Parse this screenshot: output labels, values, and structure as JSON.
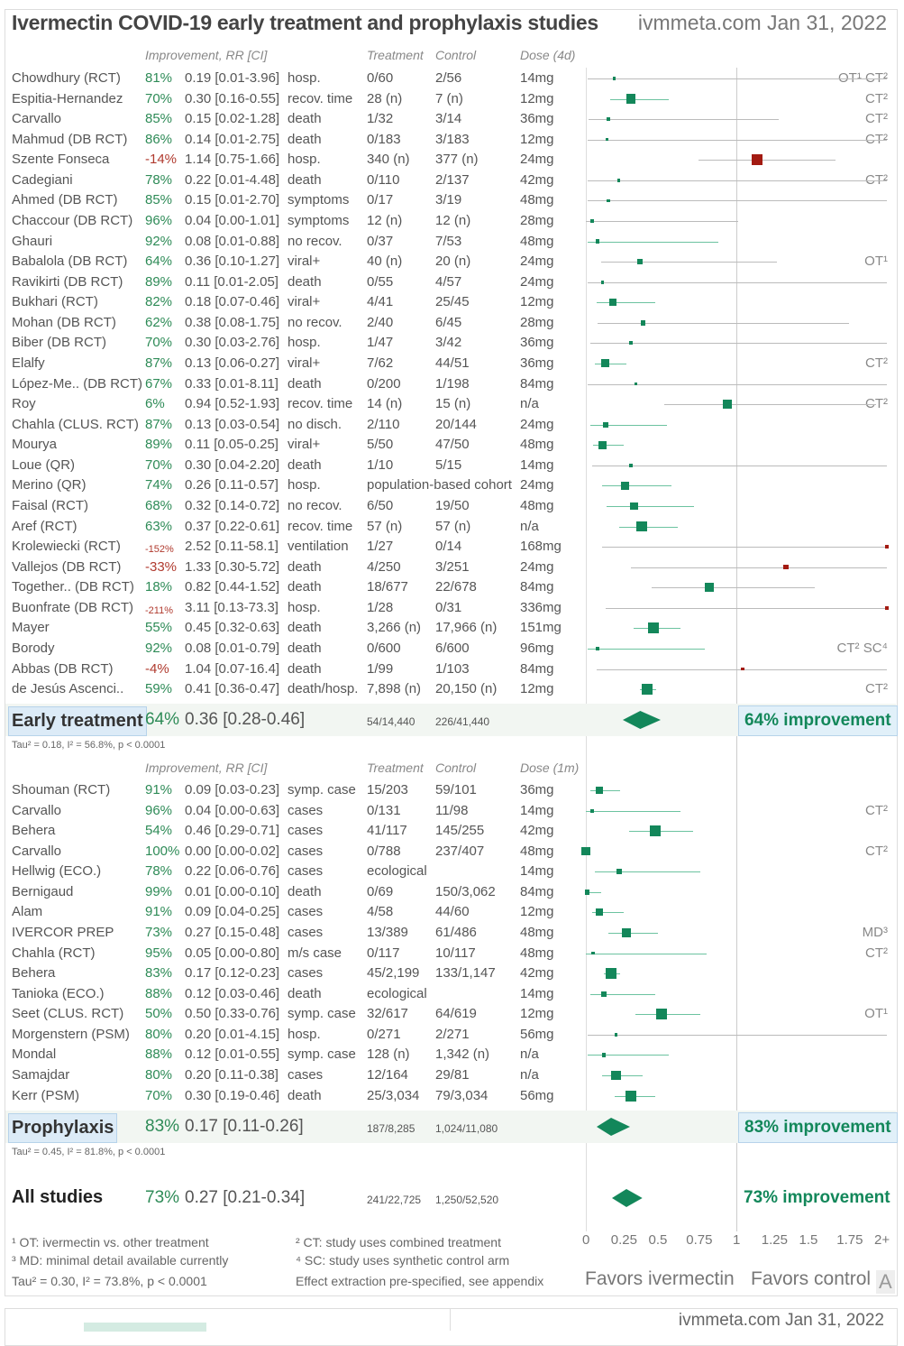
{
  "header": {
    "title": "Ivermectin COVID-19 early treatment and prophylaxis studies",
    "site": "ivmmeta.com Jan 31, 2022"
  },
  "colors": {
    "green": "#13875a",
    "red": "#a31b12",
    "gray_line": "#bbbbbb",
    "green_line": "#6cc3a0"
  },
  "column_headers": {
    "early": {
      "improvement": "Improvement, RR [CI]",
      "treatment": "Treatment",
      "control": "Control",
      "dose": "Dose (4d)"
    },
    "prophylaxis": {
      "improvement": "Improvement, RR [CI]",
      "treatment": "Treatment",
      "control": "Control",
      "dose": "Dose (1m)"
    }
  },
  "chart_data": {
    "type": "forest",
    "x_axis": {
      "ticks": [
        "0",
        "0.25",
        "0.5",
        "0.75",
        "1",
        "1.25",
        "1.5",
        "1.75",
        "2+"
      ],
      "range": [
        0,
        2
      ],
      "reference_line": 1,
      "left_label": "Favors ivermectin",
      "right_label": "Favors control"
    },
    "early": [
      {
        "name": "Chowdhury (RCT)",
        "imp": "81%",
        "rr": "0.19 [0.01-3.96]",
        "outcome": "hosp.",
        "t": "0/60",
        "c": "2/56",
        "dose": "14mg",
        "note": "OT¹ CT²"
      },
      {
        "name": "Espitia-Hernandez",
        "imp": "70%",
        "rr": "0.30 [0.16-0.55]",
        "outcome": "recov. time",
        "t": "28 (n)",
        "c": "7 (n)",
        "dose": "12mg",
        "note": "CT²"
      },
      {
        "name": "Carvallo",
        "imp": "85%",
        "rr": "0.15 [0.02-1.28]",
        "outcome": "death",
        "t": "1/32",
        "c": "3/14",
        "dose": "36mg",
        "note": "CT²"
      },
      {
        "name": "Mahmud (DB RCT)",
        "imp": "86%",
        "rr": "0.14 [0.01-2.75]",
        "outcome": "death",
        "t": "0/183",
        "c": "3/183",
        "dose": "12mg",
        "note": "CT²"
      },
      {
        "name": "Szente Fonseca",
        "imp": "-14%",
        "rr": "1.14 [0.75-1.66]",
        "outcome": "hosp.",
        "t": "340 (n)",
        "c": "377 (n)",
        "dose": "24mg",
        "note": ""
      },
      {
        "name": "Cadegiani",
        "imp": "78%",
        "rr": "0.22 [0.01-4.48]",
        "outcome": "death",
        "t": "0/110",
        "c": "2/137",
        "dose": "42mg",
        "note": "CT²"
      },
      {
        "name": "Ahmed (DB RCT)",
        "imp": "85%",
        "rr": "0.15 [0.01-2.70]",
        "outcome": "symptoms",
        "t": "0/17",
        "c": "3/19",
        "dose": "48mg",
        "note": ""
      },
      {
        "name": "Chaccour (DB RCT)",
        "imp": "96%",
        "rr": "0.04 [0.00-1.01]",
        "outcome": "symptoms",
        "t": "12 (n)",
        "c": "12 (n)",
        "dose": "28mg",
        "note": ""
      },
      {
        "name": "Ghauri",
        "imp": "92%",
        "rr": "0.08 [0.01-0.88]",
        "outcome": "no recov.",
        "t": "0/37",
        "c": "7/53",
        "dose": "48mg",
        "note": ""
      },
      {
        "name": "Babalola (DB RCT)",
        "imp": "64%",
        "rr": "0.36 [0.10-1.27]",
        "outcome": "viral+",
        "t": "40 (n)",
        "c": "20 (n)",
        "dose": "24mg",
        "note": "OT¹"
      },
      {
        "name": "Ravikirti (DB RCT)",
        "imp": "89%",
        "rr": "0.11 [0.01-2.05]",
        "outcome": "death",
        "t": "0/55",
        "c": "4/57",
        "dose": "24mg",
        "note": ""
      },
      {
        "name": "Bukhari (RCT)",
        "imp": "82%",
        "rr": "0.18 [0.07-0.46]",
        "outcome": "viral+",
        "t": "4/41",
        "c": "25/45",
        "dose": "12mg",
        "note": ""
      },
      {
        "name": "Mohan (DB RCT)",
        "imp": "62%",
        "rr": "0.38 [0.08-1.75]",
        "outcome": "no recov.",
        "t": "2/40",
        "c": "6/45",
        "dose": "28mg",
        "note": ""
      },
      {
        "name": "Biber (DB RCT)",
        "imp": "70%",
        "rr": "0.30 [0.03-2.76]",
        "outcome": "hosp.",
        "t": "1/47",
        "c": "3/42",
        "dose": "36mg",
        "note": ""
      },
      {
        "name": "Elalfy",
        "imp": "87%",
        "rr": "0.13 [0.06-0.27]",
        "outcome": "viral+",
        "t": "7/62",
        "c": "44/51",
        "dose": "36mg",
        "note": "CT²"
      },
      {
        "name": "López-Me.. (DB RCT)",
        "imp": "67%",
        "rr": "0.33 [0.01-8.11]",
        "outcome": "death",
        "t": "0/200",
        "c": "1/198",
        "dose": "84mg",
        "note": ""
      },
      {
        "name": "Roy",
        "imp": "6%",
        "rr": "0.94 [0.52-1.93]",
        "outcome": "recov. time",
        "t": "14 (n)",
        "c": "15 (n)",
        "dose": "n/a",
        "note": "CT²"
      },
      {
        "name": "Chahla (CLUS. RCT)",
        "imp": "87%",
        "rr": "0.13 [0.03-0.54]",
        "outcome": "no disch.",
        "t": "2/110",
        "c": "20/144",
        "dose": "24mg",
        "note": ""
      },
      {
        "name": "Mourya",
        "imp": "89%",
        "rr": "0.11 [0.05-0.25]",
        "outcome": "viral+",
        "t": "5/50",
        "c": "47/50",
        "dose": "48mg",
        "note": ""
      },
      {
        "name": "Loue (QR)",
        "imp": "70%",
        "rr": "0.30 [0.04-2.20]",
        "outcome": "death",
        "t": "1/10",
        "c": "5/15",
        "dose": "14mg",
        "note": ""
      },
      {
        "name": "Merino (QR)",
        "imp": "74%",
        "rr": "0.26 [0.11-0.57]",
        "outcome": "hosp.",
        "t": "population-based cohort",
        "c": "",
        "dose": "24mg",
        "note": ""
      },
      {
        "name": "Faisal (RCT)",
        "imp": "68%",
        "rr": "0.32 [0.14-0.72]",
        "outcome": "no recov.",
        "t": "6/50",
        "c": "19/50",
        "dose": "48mg",
        "note": ""
      },
      {
        "name": "Aref (RCT)",
        "imp": "63%",
        "rr": "0.37 [0.22-0.61]",
        "outcome": "recov. time",
        "t": "57 (n)",
        "c": "57 (n)",
        "dose": "n/a",
        "note": ""
      },
      {
        "name": "Krolewiecki (RCT)",
        "imp": "-152%",
        "rr": "2.52 [0.11-58.1]",
        "outcome": "ventilation",
        "t": "1/27",
        "c": "0/14",
        "dose": "168mg",
        "note": ""
      },
      {
        "name": "Vallejos (DB RCT)",
        "imp": "-33%",
        "rr": "1.33 [0.30-5.72]",
        "outcome": "death",
        "t": "4/250",
        "c": "3/251",
        "dose": "24mg",
        "note": ""
      },
      {
        "name": "Together.. (DB RCT)",
        "imp": "18%",
        "rr": "0.82 [0.44-1.52]",
        "outcome": "death",
        "t": "18/677",
        "c": "22/678",
        "dose": "84mg",
        "note": ""
      },
      {
        "name": "Buonfrate (DB RCT)",
        "imp": "-211%",
        "rr": "3.11 [0.13-73.3]",
        "outcome": "hosp.",
        "t": "1/28",
        "c": "0/31",
        "dose": "336mg",
        "note": ""
      },
      {
        "name": "Mayer",
        "imp": "55%",
        "rr": "0.45 [0.32-0.63]",
        "outcome": "death",
        "t": "3,266 (n)",
        "c": "17,966 (n)",
        "dose": "151mg",
        "note": ""
      },
      {
        "name": "Borody",
        "imp": "92%",
        "rr": "0.08 [0.01-0.79]",
        "outcome": "death",
        "t": "0/600",
        "c": "6/600",
        "dose": "96mg",
        "note": "CT² SC⁴"
      },
      {
        "name": "Abbas (DB RCT)",
        "imp": "-4%",
        "rr": "1.04 [0.07-16.4]",
        "outcome": "death",
        "t": "1/99",
        "c": "1/103",
        "dose": "84mg",
        "note": ""
      },
      {
        "name": "de Jesús Ascenci..",
        "imp": "59%",
        "rr": "0.41 [0.36-0.47]",
        "outcome": "death/hosp.",
        "t": "7,898 (n)",
        "c": "20,150 (n)",
        "dose": "12mg",
        "note": "CT²"
      }
    ],
    "early_summary": {
      "label": "Early treatment",
      "imp": "64%",
      "rr": "0.36 [0.28-0.46]",
      "t": "54/14,440",
      "c": "226/41,440",
      "improvement": "64% improvement",
      "stats": "Tau² = 0.18, I² = 56.8%, p < 0.0001"
    },
    "prophylaxis": [
      {
        "name": "Shouman (RCT)",
        "imp": "91%",
        "rr": "0.09 [0.03-0.23]",
        "outcome": "symp. case",
        "t": "15/203",
        "c": "59/101",
        "dose": "36mg",
        "note": ""
      },
      {
        "name": "Carvallo",
        "imp": "96%",
        "rr": "0.04 [0.00-0.63]",
        "outcome": "cases",
        "t": "0/131",
        "c": "11/98",
        "dose": "14mg",
        "note": "CT²"
      },
      {
        "name": "Behera",
        "imp": "54%",
        "rr": "0.46 [0.29-0.71]",
        "outcome": "cases",
        "t": "41/117",
        "c": "145/255",
        "dose": "42mg",
        "note": ""
      },
      {
        "name": "Carvallo",
        "imp": "100%",
        "rr": "0.00 [0.00-0.02]",
        "outcome": "cases",
        "t": "0/788",
        "c": "237/407",
        "dose": "48mg",
        "note": "CT²"
      },
      {
        "name": "Hellwig (ECO.)",
        "imp": "78%",
        "rr": "0.22 [0.06-0.76]",
        "outcome": "cases",
        "t": "ecological",
        "c": "",
        "dose": "14mg",
        "note": ""
      },
      {
        "name": "Bernigaud",
        "imp": "99%",
        "rr": "0.01 [0.00-0.10]",
        "outcome": "death",
        "t": "0/69",
        "c": "150/3,062",
        "dose": "84mg",
        "note": ""
      },
      {
        "name": "Alam",
        "imp": "91%",
        "rr": "0.09 [0.04-0.25]",
        "outcome": "cases",
        "t": "4/58",
        "c": "44/60",
        "dose": "12mg",
        "note": ""
      },
      {
        "name": "IVERCOR PREP",
        "imp": "73%",
        "rr": "0.27 [0.15-0.48]",
        "outcome": "cases",
        "t": "13/389",
        "c": "61/486",
        "dose": "48mg",
        "note": "MD³"
      },
      {
        "name": "Chahla (RCT)",
        "imp": "95%",
        "rr": "0.05 [0.00-0.80]",
        "outcome": "m/s case",
        "t": "0/117",
        "c": "10/117",
        "dose": "48mg",
        "note": "CT²"
      },
      {
        "name": "Behera",
        "imp": "83%",
        "rr": "0.17 [0.12-0.23]",
        "outcome": "cases",
        "t": "45/2,199",
        "c": "133/1,147",
        "dose": "42mg",
        "note": ""
      },
      {
        "name": "Tanioka (ECO.)",
        "imp": "88%",
        "rr": "0.12 [0.03-0.46]",
        "outcome": "death",
        "t": "ecological",
        "c": "",
        "dose": "14mg",
        "note": ""
      },
      {
        "name": "Seet (CLUS. RCT)",
        "imp": "50%",
        "rr": "0.50 [0.33-0.76]",
        "outcome": "symp. case",
        "t": "32/617",
        "c": "64/619",
        "dose": "12mg",
        "note": "OT¹"
      },
      {
        "name": "Morgenstern (PSM)",
        "imp": "80%",
        "rr": "0.20 [0.01-4.15]",
        "outcome": "hosp.",
        "t": "0/271",
        "c": "2/271",
        "dose": "56mg",
        "note": ""
      },
      {
        "name": "Mondal",
        "imp": "88%",
        "rr": "0.12 [0.01-0.55]",
        "outcome": "symp. case",
        "t": "128 (n)",
        "c": "1,342 (n)",
        "dose": "n/a",
        "note": ""
      },
      {
        "name": "Samajdar",
        "imp": "80%",
        "rr": "0.20 [0.11-0.38]",
        "outcome": "cases",
        "t": "12/164",
        "c": "29/81",
        "dose": "n/a",
        "note": ""
      },
      {
        "name": "Kerr (PSM)",
        "imp": "70%",
        "rr": "0.30 [0.19-0.46]",
        "outcome": "death",
        "t": "25/3,034",
        "c": "79/3,034",
        "dose": "56mg",
        "note": ""
      }
    ],
    "prophylaxis_summary": {
      "label": "Prophylaxis",
      "imp": "83%",
      "rr": "0.17 [0.11-0.26]",
      "t": "187/8,285",
      "c": "1,024/11,080",
      "improvement": "83% improvement",
      "stats": "Tau² = 0.45, I² = 81.8%, p < 0.0001"
    },
    "all_summary": {
      "label": "All studies",
      "imp": "73%",
      "rr": "0.27 [0.21-0.34]",
      "t": "241/22,725",
      "c": "1,250/52,520",
      "improvement": "73% improvement",
      "stats": "Tau² = 0.30, I² = 73.8%, p < 0.0001"
    }
  },
  "footnotes": {
    "ot": "¹ OT: ivermectin vs. other treatment",
    "md": "³ MD: minimal detail available currently",
    "ct": "² CT: study uses combined treatment",
    "sc": "⁴ SC: study uses synthetic control arm",
    "extraction": "Effect extraction pre-specified, see appendix",
    "corner_letter": "A"
  },
  "second_panel": {
    "site": "ivmmeta.com Jan 31, 2022"
  }
}
